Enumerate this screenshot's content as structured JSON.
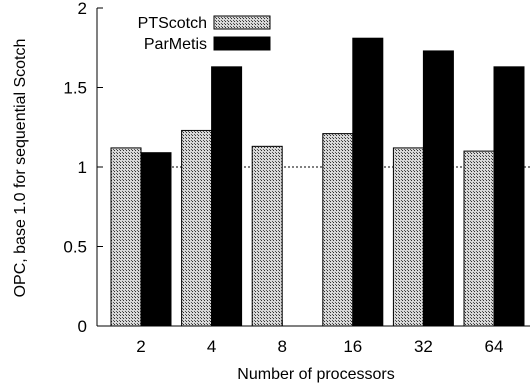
{
  "chart_data": {
    "type": "bar",
    "title": "",
    "xlabel": "Number of processors",
    "ylabel": "OPC, base 1.0 for sequential Scotch",
    "categories": [
      "2",
      "4",
      "8",
      "16",
      "32",
      "64"
    ],
    "ylim": [
      0,
      2
    ],
    "yticks": [
      "0",
      "0.5",
      "1",
      "1.5",
      "2"
    ],
    "reference_line": 1.0,
    "grid": false,
    "legend_position": "top-left",
    "series": [
      {
        "name": "PTScotch",
        "values": [
          1.12,
          1.23,
          1.13,
          1.21,
          1.12,
          1.1
        ],
        "color": "#999999",
        "pattern": "crosshatch"
      },
      {
        "name": "ParMetis",
        "values": [
          1.09,
          1.63,
          null,
          1.81,
          1.73,
          1.63
        ],
        "color": "#000000",
        "pattern": "solid"
      }
    ]
  }
}
